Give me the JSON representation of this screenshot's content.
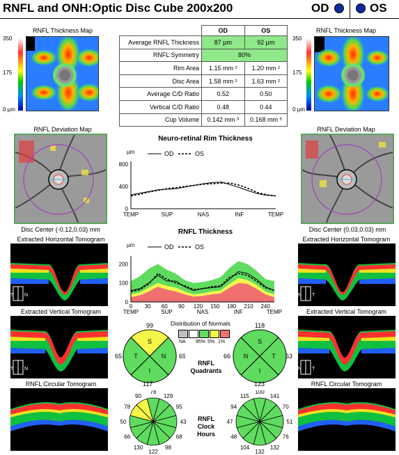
{
  "header": {
    "title": "RNFL and ONH:Optic Disc Cube 200x200",
    "od_label": "OD",
    "os_label": "OS",
    "eye_dot_color": "#0b2a9e"
  },
  "thickness_map": {
    "title": "RNFL Thickness Map",
    "scale_top": "350",
    "scale_mid": "175",
    "scale_bottom": "0 µm"
  },
  "table": {
    "col_od": "OD",
    "col_os": "OS",
    "rows": [
      {
        "label": "Average RNFL Thickness",
        "od": "87 µm",
        "os": "92 µm"
      },
      {
        "label": "RNFL Symmetry",
        "both": "80%"
      },
      {
        "label": "Rim Area",
        "od": "1.15 mm ²",
        "os": "1.20 mm ²"
      },
      {
        "label": "Disc Area",
        "od": "1.58 mm ²",
        "os": "1.63 mm ²"
      },
      {
        "label": "Average C/D Ratio",
        "od": "0.52",
        "os": "0.50"
      },
      {
        "label": "Vertical C/D Ratio",
        "od": "0.48",
        "os": "0.44"
      },
      {
        "label": "Cup Volume",
        "od": "0.142 mm ³",
        "os": "0.168 mm ³"
      }
    ],
    "green_color": "#8fe98a"
  },
  "deviation_map": {
    "title": "RNFL Deviation Map",
    "od_disc_center": "Disc Center (-0.12,0.03) mm",
    "os_disc_center": "Disc Center (0.03,0.03) mm"
  },
  "tomograms": {
    "horizontal": "Extracted Horizontal Tomogram",
    "vertical": "Extracted Vertical Tomogram",
    "circular": "RNFL Circular Tomogram"
  },
  "rim_chart": {
    "title": "Neuro-retinal Rim Thickness",
    "unit": "µm",
    "legend_od": "OD",
    "legend_os": "OS",
    "y_ticks": [
      "800",
      "400",
      "0"
    ],
    "x_labels": [
      "TEMP",
      "SUP",
      "NAS",
      "INF",
      "TEMP"
    ]
  },
  "rnfl_chart": {
    "title": "RNFL Thickness",
    "unit": "µm",
    "legend_od": "OD",
    "legend_os": "OS",
    "y_ticks": [
      "200",
      "100",
      "0"
    ],
    "x_ticks": [
      "0",
      "30",
      "60",
      "90",
      "120",
      "150",
      "180",
      "210",
      "240"
    ],
    "x_labels": [
      "TEMP",
      "SUP",
      "NAS",
      "INF",
      "TEMP"
    ]
  },
  "normals": {
    "title": "Distribution of Normals",
    "na": "NA",
    "p95": "95%",
    "p5": "5%",
    "p1": "1%",
    "colors": {
      "na": "#c0c0c0",
      "white": "#ffffff",
      "green": "#5fdc5f",
      "yellow": "#f5f54a",
      "red": "#f07070"
    }
  },
  "quadrants": {
    "label_line1": "RNFL",
    "label_line2": "Quadrants",
    "od": {
      "s": "99",
      "n": "69",
      "i": "117",
      "t": "65"
    },
    "os": {
      "s": "118",
      "n": "66",
      "i": "123",
      "t": "63"
    },
    "letters": {
      "s": "S",
      "n": "N",
      "i": "I",
      "t": "T"
    }
  },
  "clock_hours": {
    "label_line1": "RNFL",
    "label_line2": "Clock",
    "label_line3": "Hours",
    "od": [
      "78",
      "129",
      "95",
      "43",
      "68",
      "98",
      "122",
      "130",
      "66",
      "50",
      "78",
      "90"
    ],
    "os": [
      "100",
      "141",
      "70",
      "51",
      "76",
      "132",
      "132",
      "104",
      "48",
      "47",
      "94",
      "115"
    ]
  },
  "chart_data": [
    {
      "type": "line",
      "title": "Neuro-retinal Rim Thickness",
      "ylabel": "µm",
      "ylim": [
        0,
        800
      ],
      "x_categories": [
        "TEMP",
        "SUP",
        "NAS",
        "INF",
        "TEMP"
      ],
      "x": [
        0,
        16,
        32,
        48,
        64,
        80,
        96,
        112,
        128,
        144,
        160,
        176,
        192,
        208,
        224,
        240,
        256
      ],
      "series": [
        {
          "name": "OD",
          "values": [
            250,
            280,
            310,
            340,
            350,
            360,
            390,
            420,
            450,
            470,
            480,
            430,
            380,
            320,
            270,
            240,
            230
          ]
        },
        {
          "name": "OS",
          "values": [
            230,
            260,
            300,
            330,
            360,
            380,
            400,
            420,
            440,
            450,
            460,
            460,
            420,
            360,
            290,
            250,
            230
          ]
        }
      ]
    },
    {
      "type": "line",
      "title": "RNFL Thickness",
      "ylabel": "µm",
      "ylim": [
        0,
        250
      ],
      "xlim": [
        0,
        256
      ],
      "x_ticks": [
        0,
        30,
        60,
        90,
        120,
        150,
        180,
        210,
        240
      ],
      "x": [
        0,
        16,
        32,
        48,
        64,
        80,
        96,
        112,
        128,
        144,
        160,
        176,
        192,
        208,
        224,
        240,
        256
      ],
      "series": [
        {
          "name": "OD",
          "values": [
            60,
            70,
            100,
            140,
            110,
            110,
            80,
            60,
            70,
            75,
            80,
            120,
            160,
            150,
            120,
            80,
            60
          ]
        },
        {
          "name": "OS",
          "values": [
            55,
            65,
            95,
            150,
            120,
            100,
            85,
            65,
            70,
            80,
            85,
            130,
            150,
            140,
            110,
            75,
            60
          ]
        }
      ]
    }
  ]
}
